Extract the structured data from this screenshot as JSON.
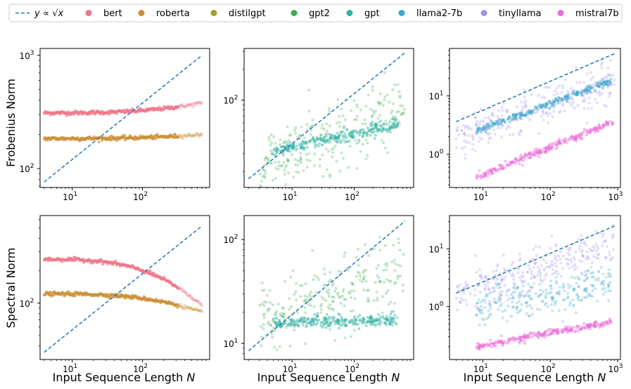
{
  "colors": {
    "ref_line": "#1f77b4",
    "bert": "#f07589",
    "roberta": "#cc8f33",
    "distilgpt": "#9b9f30",
    "gpt2": "#3aad52",
    "gpt": "#33b3a3",
    "llama2-7b": "#3aa9cc",
    "tinyllama": "#a193f2",
    "mistral7b": "#ec6ad8"
  },
  "legend": {
    "ref_label_prefix": "y ∝ ",
    "ref_label_sqrt": "√x",
    "items": [
      {
        "key": "bert",
        "label": "bert"
      },
      {
        "key": "roberta",
        "label": "roberta"
      },
      {
        "key": "distilgpt",
        "label": "distilgpt"
      },
      {
        "key": "gpt2",
        "label": "gpt2"
      },
      {
        "key": "gpt",
        "label": "gpt"
      },
      {
        "key": "llama2-7b",
        "label": "llama2-7b"
      },
      {
        "key": "tinyllama",
        "label": "tinyllama"
      },
      {
        "key": "mistral7b",
        "label": "mistral7b"
      }
    ]
  },
  "labels": {
    "row0_ylabel": "Frobenius Norm",
    "row1_ylabel": "Spectral Norm",
    "xlabel_text": "Input Sequence Length ",
    "xlabel_var": "N"
  },
  "chart_data": [
    {
      "type": "scatter",
      "panel": "frobenius-encoder",
      "xscale": "log",
      "yscale": "log",
      "xlim": [
        3.5,
        900
      ],
      "ylim": [
        68,
        1150
      ],
      "xticks": [
        {
          "base": "10",
          "exp": "1",
          "value": 10
        },
        {
          "base": "10",
          "exp": "2",
          "value": 100
        }
      ],
      "yticks": [
        {
          "base": "10",
          "exp": "2",
          "value": 100
        },
        {
          "base": "10",
          "exp": "3",
          "value": 1000
        }
      ],
      "reference_line": {
        "x": [
          4,
          700
        ],
        "y": [
          76,
          1000
        ]
      },
      "series": [
        {
          "name": "bert",
          "x_range": [
            4,
            700
          ],
          "y_start": 310,
          "y_end": 380,
          "description": "flat then rising slightly"
        },
        {
          "name": "roberta",
          "x_range": [
            4,
            700
          ],
          "y_start": 184,
          "y_end": 200
        }
      ]
    },
    {
      "type": "scatter",
      "panel": "frobenius-gpt",
      "xscale": "log",
      "yscale": "log",
      "xlim": [
        1.7,
        900
      ],
      "ylim": [
        14,
        320
      ],
      "xticks": [
        {
          "base": "10",
          "exp": "1",
          "value": 10
        },
        {
          "base": "10",
          "exp": "2",
          "value": 100
        }
      ],
      "yticks": [
        {
          "base": "10",
          "exp": "2",
          "value": 100
        }
      ],
      "reference_line": {
        "x": [
          2,
          650
        ],
        "y": [
          17,
          290
        ]
      },
      "series": [
        {
          "name": "gpt2",
          "x_range": [
            2,
            650
          ],
          "y_range": [
            18,
            120
          ]
        },
        {
          "name": "gpt",
          "x_range": [
            5,
            500
          ],
          "y_start": 32,
          "y_end": 57
        }
      ]
    },
    {
      "type": "scatter",
      "panel": "frobenius-llm",
      "xscale": "log",
      "yscale": "log",
      "xlim": [
        3.2,
        1100
      ],
      "ylim": [
        0.27,
        65
      ],
      "xticks": [
        {
          "base": "10",
          "exp": "1",
          "value": 10
        },
        {
          "base": "10",
          "exp": "2",
          "value": 100
        },
        {
          "base": "10",
          "exp": "3",
          "value": 1000
        }
      ],
      "yticks": [
        {
          "base": "10",
          "exp": "0",
          "value": 1
        },
        {
          "base": "10",
          "exp": "1",
          "value": 10
        }
      ],
      "reference_line": {
        "x": [
          4,
          900
        ],
        "y": [
          3.6,
          53
        ]
      },
      "series": [
        {
          "name": "llama2-7b",
          "x_range": [
            8,
            800
          ],
          "y_start": 2.5,
          "y_end": 18
        },
        {
          "name": "tinyllama",
          "x_range": [
            4,
            900
          ],
          "y_range": [
            2,
            30
          ]
        },
        {
          "name": "mistral7b",
          "x_range": [
            8,
            850
          ],
          "y_start": 0.4,
          "y_end": 3.6
        }
      ]
    },
    {
      "type": "scatter",
      "panel": "spectral-encoder",
      "xscale": "log",
      "yscale": "log",
      "xlim": [
        3.5,
        900
      ],
      "ylim": [
        30,
        650
      ],
      "xticks": [
        {
          "base": "10",
          "exp": "1",
          "value": 10
        },
        {
          "base": "10",
          "exp": "2",
          "value": 100
        }
      ],
      "yticks": [
        {
          "base": "10",
          "exp": "2",
          "value": 100
        }
      ],
      "reference_line": {
        "x": [
          4,
          700
        ],
        "y": [
          35,
          520
        ]
      },
      "series": [
        {
          "name": "bert",
          "x_range": [
            4,
            700
          ],
          "y_start": 255,
          "y_end": 95,
          "description": "flat then dropping"
        },
        {
          "name": "roberta",
          "x_range": [
            4,
            700
          ],
          "y_start": 122,
          "y_end": 82
        }
      ]
    },
    {
      "type": "scatter",
      "panel": "spectral-gpt",
      "xscale": "log",
      "yscale": "log",
      "xlim": [
        1.7,
        900
      ],
      "ylim": [
        7,
        170
      ],
      "xticks": [
        {
          "base": "10",
          "exp": "1",
          "value": 10
        },
        {
          "base": "10",
          "exp": "2",
          "value": 100
        }
      ],
      "yticks": [
        {
          "base": "10",
          "exp": "1",
          "value": 10
        },
        {
          "base": "10",
          "exp": "2",
          "value": 100
        }
      ],
      "reference_line": {
        "x": [
          2,
          650
        ],
        "y": [
          8.5,
          150
        ]
      },
      "series": [
        {
          "name": "gpt2",
          "x_range": [
            2,
            650
          ],
          "y_range": [
            16,
            60
          ]
        },
        {
          "name": "gpt",
          "x_range": [
            5,
            500
          ],
          "y_start": 16,
          "y_end": 17
        }
      ]
    },
    {
      "type": "scatter",
      "panel": "spectral-llm",
      "xscale": "log",
      "yscale": "log",
      "xlim": [
        3.2,
        1100
      ],
      "ylim": [
        0.12,
        38
      ],
      "xticks": [
        {
          "base": "10",
          "exp": "1",
          "value": 10
        },
        {
          "base": "10",
          "exp": "2",
          "value": 100
        },
        {
          "base": "10",
          "exp": "3",
          "value": 1000
        }
      ],
      "yticks": [
        {
          "base": "10",
          "exp": "0",
          "value": 1
        },
        {
          "base": "10",
          "exp": "1",
          "value": 10
        }
      ],
      "reference_line": {
        "x": [
          4,
          900
        ],
        "y": [
          1.7,
          25
        ]
      },
      "series": [
        {
          "name": "llama2-7b",
          "x_range": [
            8,
            800
          ],
          "y_range": [
            1.0,
            3.0
          ]
        },
        {
          "name": "tinyllama",
          "x_range": [
            4,
            900
          ],
          "y_range": [
            1.5,
            20
          ]
        },
        {
          "name": "mistral7b",
          "x_range": [
            8,
            850
          ],
          "y_start": 0.2,
          "y_end": 0.55
        }
      ]
    }
  ]
}
